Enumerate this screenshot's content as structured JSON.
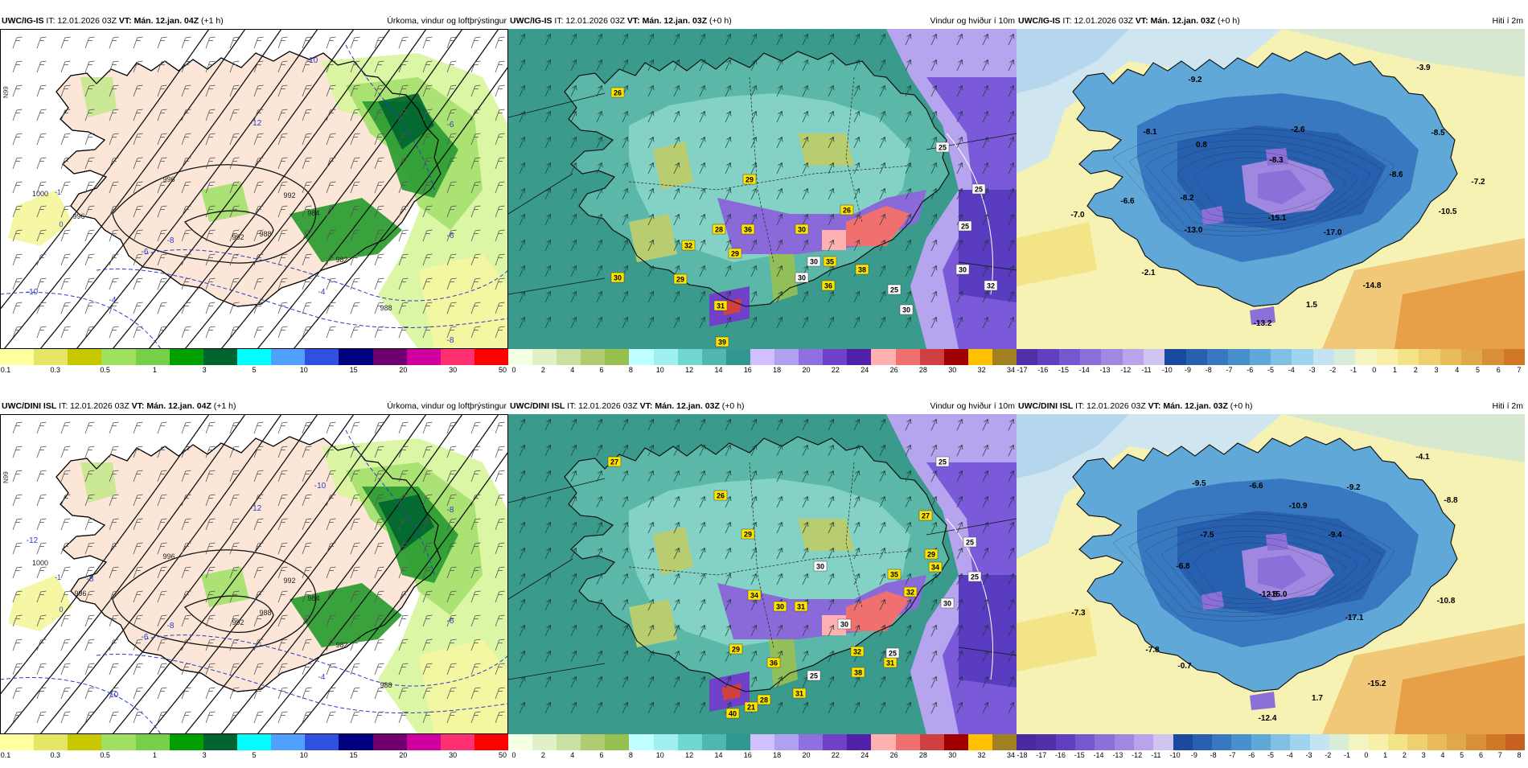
{
  "panels": [
    {
      "id": "r0c0",
      "model": "UWC/IG-IS",
      "it": "IT: 12.01.2026 03Z",
      "vt": "VT: Mán. 12.jan. 04Z",
      "lead": "(+1 h)",
      "title": "Úrkoma, vindur og loftþrýstingur",
      "type": "precip",
      "colorbar": {
        "colors": [
          "#ffff9f",
          "#e6e666",
          "#c8c800",
          "#a0e060",
          "#78d04a",
          "#00a000",
          "#006430",
          "#00ffff",
          "#50a0ff",
          "#3050e0",
          "#000080",
          "#700070",
          "#d000a0",
          "#ff3070",
          "#ff0000"
        ],
        "ticks": [
          "0.1",
          "0.3",
          "0.5",
          "1",
          "3",
          "5",
          "10",
          "15",
          "20",
          "30",
          "50"
        ]
      },
      "pressure_labels": [
        "1000",
        "996",
        "992",
        "988",
        "984",
        "982",
        "996",
        "992",
        "988"
      ],
      "temp_labels": [
        "-10",
        "-12",
        "-8",
        "-6",
        "-4",
        "-10",
        "-6",
        "-8",
        "-4",
        "-6"
      ],
      "edge_label": "N99",
      "other_labels": [
        "-1",
        "0"
      ]
    },
    {
      "id": "r0c1",
      "model": "UWC/IG-IS",
      "it": "IT: 12.01.2026 03Z",
      "vt": "VT: Mán. 12.jan. 03Z",
      "lead": "(+0 h)",
      "title": "Vindur og hviður í 10m",
      "type": "wind",
      "colorbar": {
        "colors": [
          "#f4ffe4",
          "#e2f0c8",
          "#c8e0a0",
          "#b0cc70",
          "#98c050",
          "#c0ffff",
          "#a0f0f0",
          "#70d8d0",
          "#50b8b0",
          "#309890",
          "#d0c0ff",
          "#b0a0f0",
          "#9070e0",
          "#7040c8",
          "#5020a8",
          "#ffb0b0",
          "#f07070",
          "#d04040",
          "#a00000",
          "#ffc000",
          "#a08020"
        ],
        "ticks": [
          "0",
          "2",
          "4",
          "6",
          "8",
          "10",
          "12",
          "14",
          "16",
          "18",
          "20",
          "22",
          "24",
          "26",
          "28",
          "30",
          "32",
          "34"
        ]
      },
      "gust_labels_yellow": [
        "26",
        "29",
        "28",
        "36",
        "30",
        "29",
        "32",
        "35",
        "38",
        "30",
        "29",
        "31",
        "39",
        "26",
        "36"
      ],
      "gust_labels_white": [
        "25",
        "25",
        "25",
        "30",
        "30",
        "25",
        "30",
        "30",
        "32"
      ]
    },
    {
      "id": "r0c2",
      "model": "UWC/IG-IS",
      "it": "IT: 12.01.2026 03Z",
      "vt": "VT: Mán. 12.jan. 03Z",
      "lead": "(+0 h)",
      "title": "Hiti í 2m",
      "type": "temp",
      "colorbar": {
        "colors": [
          "#5030a8",
          "#6040c0",
          "#7458d0",
          "#8a70d8",
          "#a088e0",
          "#b8a4ea",
          "#d0c4f0",
          "#1a4aa0",
          "#2860b0",
          "#3878c0",
          "#4890cc",
          "#60a8d8",
          "#80c0e4",
          "#a0d4ee",
          "#c4e4f4",
          "#d8ecd8",
          "#f4f4c0",
          "#f8f0a8",
          "#f4e488",
          "#eed070",
          "#e8bc58",
          "#e0a848",
          "#d89038",
          "#d07828"
        ],
        "ticks": [
          "-17",
          "-16",
          "-15",
          "-14",
          "-13",
          "-12",
          "-11",
          "-10",
          "-9",
          "-8",
          "-7",
          "-6",
          "-5",
          "-4",
          "-3",
          "-2",
          "-1",
          "0",
          "1",
          "2",
          "3",
          "4",
          "5",
          "6",
          "7"
        ]
      },
      "temp_values": [
        "-9.2",
        "-3.9",
        "-8.1",
        "0.8",
        "-2.6",
        "-8.5",
        "-8.3",
        "-8.6",
        "-7.2",
        "-6.6",
        "-8.2",
        "-7.0",
        "-15.1",
        "-10.5",
        "-13.0",
        "-17.0",
        "-2.1",
        "-14.8",
        "1.5",
        "-13.2"
      ]
    },
    {
      "id": "r1c0",
      "model": "UWC/DINI ISL",
      "it": "IT: 12.01.2026 03Z",
      "vt": "VT: Mán. 12.jan. 04Z",
      "lead": "(+1 h)",
      "title": "Úrkoma, vindur og loftþrýstingur",
      "type": "precip",
      "colorbar": {
        "colors": [
          "#ffff9f",
          "#e6e666",
          "#c8c800",
          "#a0e060",
          "#78d04a",
          "#00a000",
          "#006430",
          "#00ffff",
          "#50a0ff",
          "#3050e0",
          "#000080",
          "#700070",
          "#d000a0",
          "#ff3070",
          "#ff0000"
        ],
        "ticks": [
          "0.1",
          "0.3",
          "0.5",
          "1",
          "3",
          "5",
          "10",
          "15",
          "20",
          "30",
          "50"
        ]
      },
      "pressure_labels": [
        "1000",
        "996",
        "992",
        "988",
        "984",
        "982",
        "996",
        "992",
        "988"
      ],
      "temp_labels": [
        "-12",
        "-10",
        "-12",
        "-8",
        "-6",
        "-4",
        "-10",
        "-8",
        "-8",
        "-6"
      ],
      "edge_label": "N99",
      "other_labels": [
        "-1",
        "0"
      ]
    },
    {
      "id": "r1c1",
      "model": "UWC/DINI ISL",
      "it": "IT: 12.01.2026 03Z",
      "vt": "VT: Mán. 12.jan. 03Z",
      "lead": "(+0 h)",
      "title": "Vindur og hviður í 10m",
      "type": "wind",
      "colorbar": {
        "colors": [
          "#f4ffe4",
          "#e2f0c8",
          "#c8e0a0",
          "#b0cc70",
          "#98c050",
          "#c0ffff",
          "#a0f0f0",
          "#70d8d0",
          "#50b8b0",
          "#309890",
          "#d0c0ff",
          "#b0a0f0",
          "#9070e0",
          "#7040c8",
          "#5020a8",
          "#ffb0b0",
          "#f07070",
          "#d04040",
          "#a00000",
          "#ffc000",
          "#a08020"
        ],
        "ticks": [
          "0",
          "2",
          "4",
          "6",
          "8",
          "10",
          "12",
          "14",
          "16",
          "18",
          "20",
          "22",
          "24",
          "26",
          "28",
          "30",
          "32",
          "34"
        ]
      },
      "gust_labels_yellow": [
        "27",
        "26",
        "29",
        "34",
        "30",
        "31",
        "29",
        "36",
        "38",
        "27",
        "29",
        "34",
        "31",
        "28",
        "40",
        "32",
        "32",
        "31",
        "21",
        "35"
      ],
      "gust_labels_white": [
        "25",
        "25",
        "25",
        "30",
        "30",
        "25",
        "25",
        "30"
      ]
    },
    {
      "id": "r1c2",
      "model": "UWC/DINI ISL",
      "it": "IT: 12.01.2026 03Z",
      "vt": "VT: Mán. 12.jan. 03Z",
      "lead": "(+0 h)",
      "title": "Hiti í 2m",
      "type": "temp",
      "colorbar": {
        "colors": [
          "#4a2aa0",
          "#5030a8",
          "#6040c0",
          "#7458d0",
          "#8a70d8",
          "#a088e0",
          "#b8a4ea",
          "#d0c4f0",
          "#1a4aa0",
          "#2860b0",
          "#3878c0",
          "#4890cc",
          "#60a8d8",
          "#80c0e4",
          "#a0d4ee",
          "#c4e4f4",
          "#d8ecd8",
          "#f4f4c0",
          "#f8f0a8",
          "#f4e488",
          "#eed070",
          "#e8bc58",
          "#e0a848",
          "#d89038",
          "#d07828",
          "#c86020"
        ],
        "ticks": [
          "-18",
          "-17",
          "-16",
          "-15",
          "-14",
          "-13",
          "-12",
          "-11",
          "-10",
          "-9",
          "-8",
          "-7",
          "-6",
          "-5",
          "-4",
          "-3",
          "-2",
          "-1",
          "0",
          "1",
          "2",
          "3",
          "4",
          "5",
          "6",
          "7",
          "8"
        ]
      },
      "temp_values": [
        "-9.5",
        "-6.6",
        "-4.1",
        "-9.2",
        "-8.8",
        "-10.9",
        "-7.5",
        "-9.4",
        "-6.8",
        "-7.3",
        "-12.8",
        "-15.0",
        "-17.1",
        "-10.8",
        "-7.8",
        "-0.7",
        "-15.2",
        "1.7",
        "-12.4"
      ]
    }
  ]
}
